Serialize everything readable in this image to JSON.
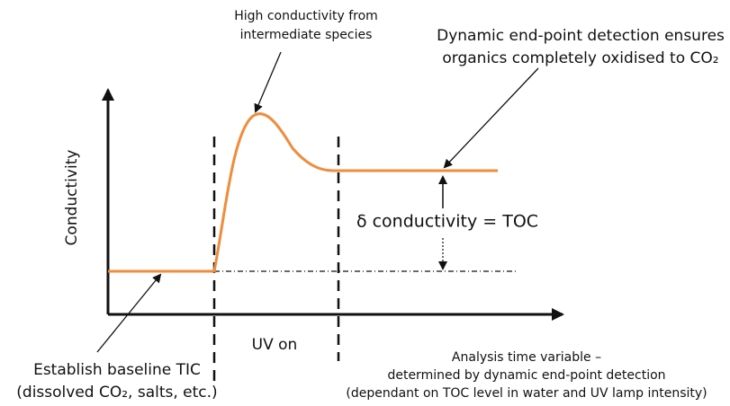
{
  "axis_label_y": "Conductivity",
  "annotations": {
    "peak": [
      "High conductivity from",
      "intermediate species"
    ],
    "endpoint": [
      "Dynamic end-point detection ensures",
      "organics completely oxidised to CO₂"
    ],
    "delta": "δ conductivity = TOC",
    "baseline": [
      "Establish baseline TIC",
      "(dissolved CO₂, salts, etc.)"
    ],
    "uv": "UV on",
    "analysis": [
      "Analysis time variable –",
      "determined by dynamic end-point detection",
      "(dependant on TOC level in water and UV lamp intensity)"
    ]
  }
}
